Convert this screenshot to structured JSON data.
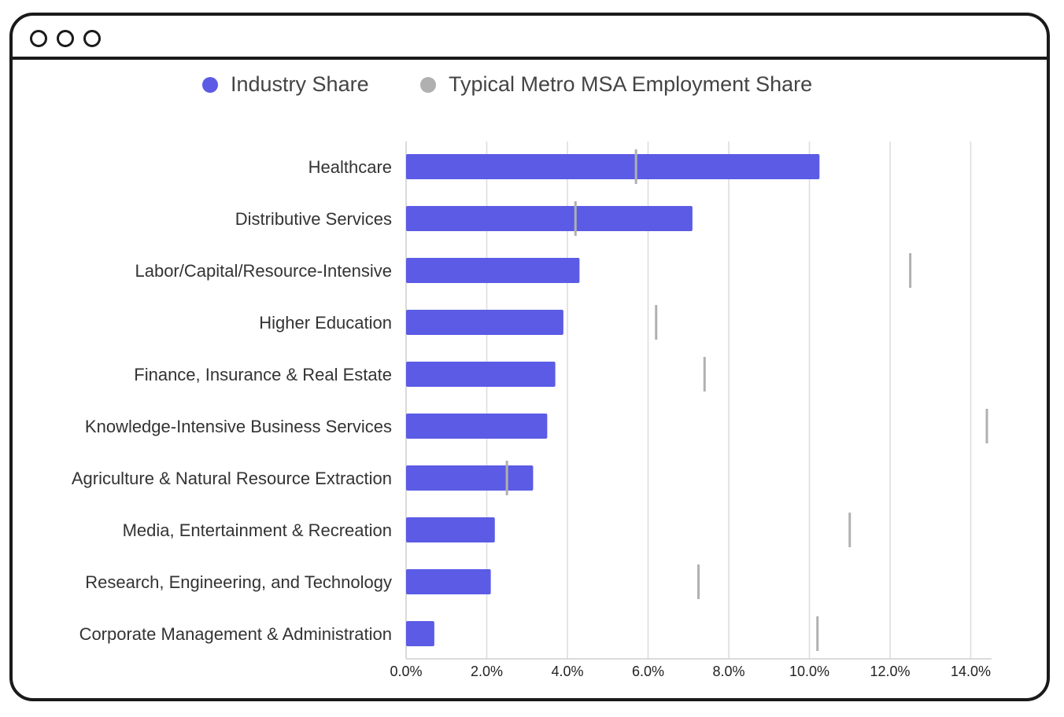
{
  "window": {
    "controls": [
      "window-dot-1",
      "window-dot-2",
      "window-dot-3"
    ]
  },
  "chart_data": {
    "type": "bar",
    "orientation": "horizontal",
    "title": "",
    "xlabel": "",
    "ylabel": "",
    "xlim": [
      0,
      14.4
    ],
    "x_ticks": [
      "0.0%",
      "2.0%",
      "4.0%",
      "6.0%",
      "8.0%",
      "10.0%",
      "12.0%",
      "14.0%"
    ],
    "x_tick_values": [
      0,
      2,
      4,
      6,
      8,
      10,
      12,
      14
    ],
    "grid": "vertical",
    "legend_position": "top-center",
    "categories": [
      "Healthcare",
      "Distributive Services",
      "Labor/Capital/Resource-Intensive",
      "Higher Education",
      "Finance, Insurance & Real Estate",
      "Knowledge-Intensive Business Services",
      "Agriculture & Natural Resource Extraction",
      "Media, Entertainment & Recreation",
      "Research, Engineering, and Technology",
      "Corporate Management & Administration"
    ],
    "series": [
      {
        "name": "Industry Share",
        "marker": "bar",
        "color": "#5b5be6",
        "values": [
          10.25,
          7.1,
          4.3,
          3.9,
          3.7,
          3.5,
          3.15,
          2.2,
          2.1,
          0.7
        ]
      },
      {
        "name": "Typical Metro MSA Employment Share",
        "marker": "line",
        "color": "#b0b0b0",
        "values": [
          5.7,
          4.2,
          12.5,
          6.2,
          7.4,
          14.4,
          2.5,
          11.0,
          7.25,
          10.2
        ]
      }
    ]
  }
}
